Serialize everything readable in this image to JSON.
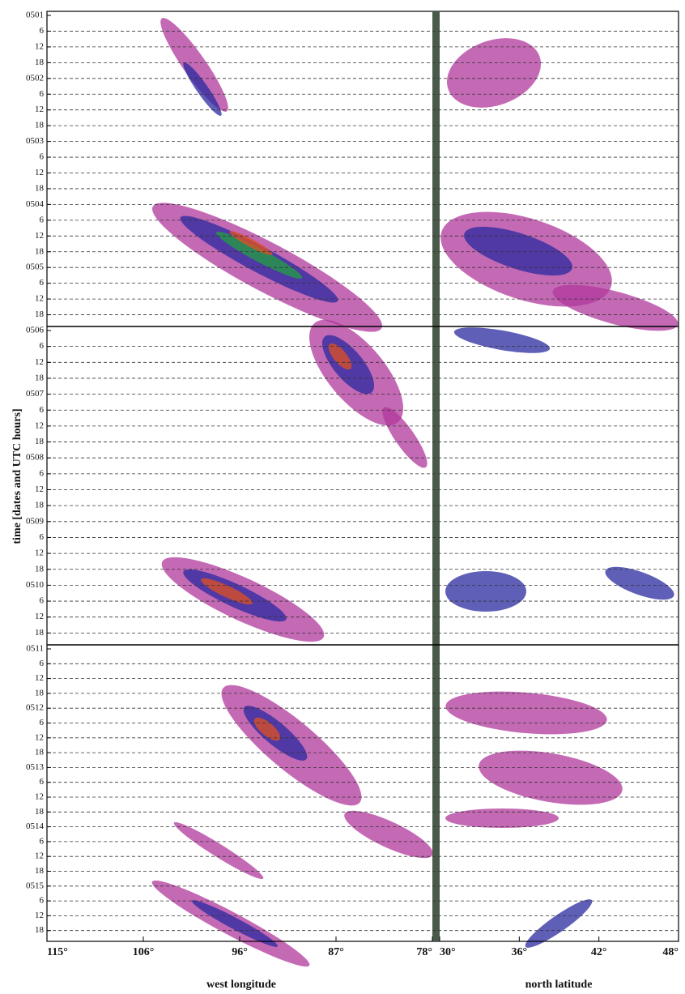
{
  "figure": {
    "y_title": "time [dates and UTC hours]",
    "y_labels": [
      "0501",
      "6",
      "12",
      "18",
      "0502",
      "6",
      "12",
      "18",
      "0503",
      "6",
      "12",
      "18",
      "0504",
      "6",
      "12",
      "18",
      "0505",
      "6",
      "12",
      "18",
      "0506",
      "6",
      "12",
      "18",
      "0507",
      "6",
      "12",
      "18",
      "0508",
      "6",
      "12",
      "18",
      "0509",
      "6",
      "12",
      "18",
      "0510",
      "6",
      "12",
      "18",
      "0511",
      "6",
      "12",
      "18",
      "0512",
      "6",
      "12",
      "18",
      "0513",
      "6",
      "12",
      "18",
      "0514",
      "6",
      "12",
      "18",
      "0515",
      "6",
      "12",
      "18"
    ],
    "left_panel": {
      "x_title": "west longitude",
      "x_labels": [
        "115°",
        "106°",
        "96°",
        "87°",
        "78°"
      ]
    },
    "right_panel": {
      "x_title": "north latitude",
      "x_labels": [
        "30°",
        "36°",
        "42°",
        "48°"
      ]
    }
  }
}
